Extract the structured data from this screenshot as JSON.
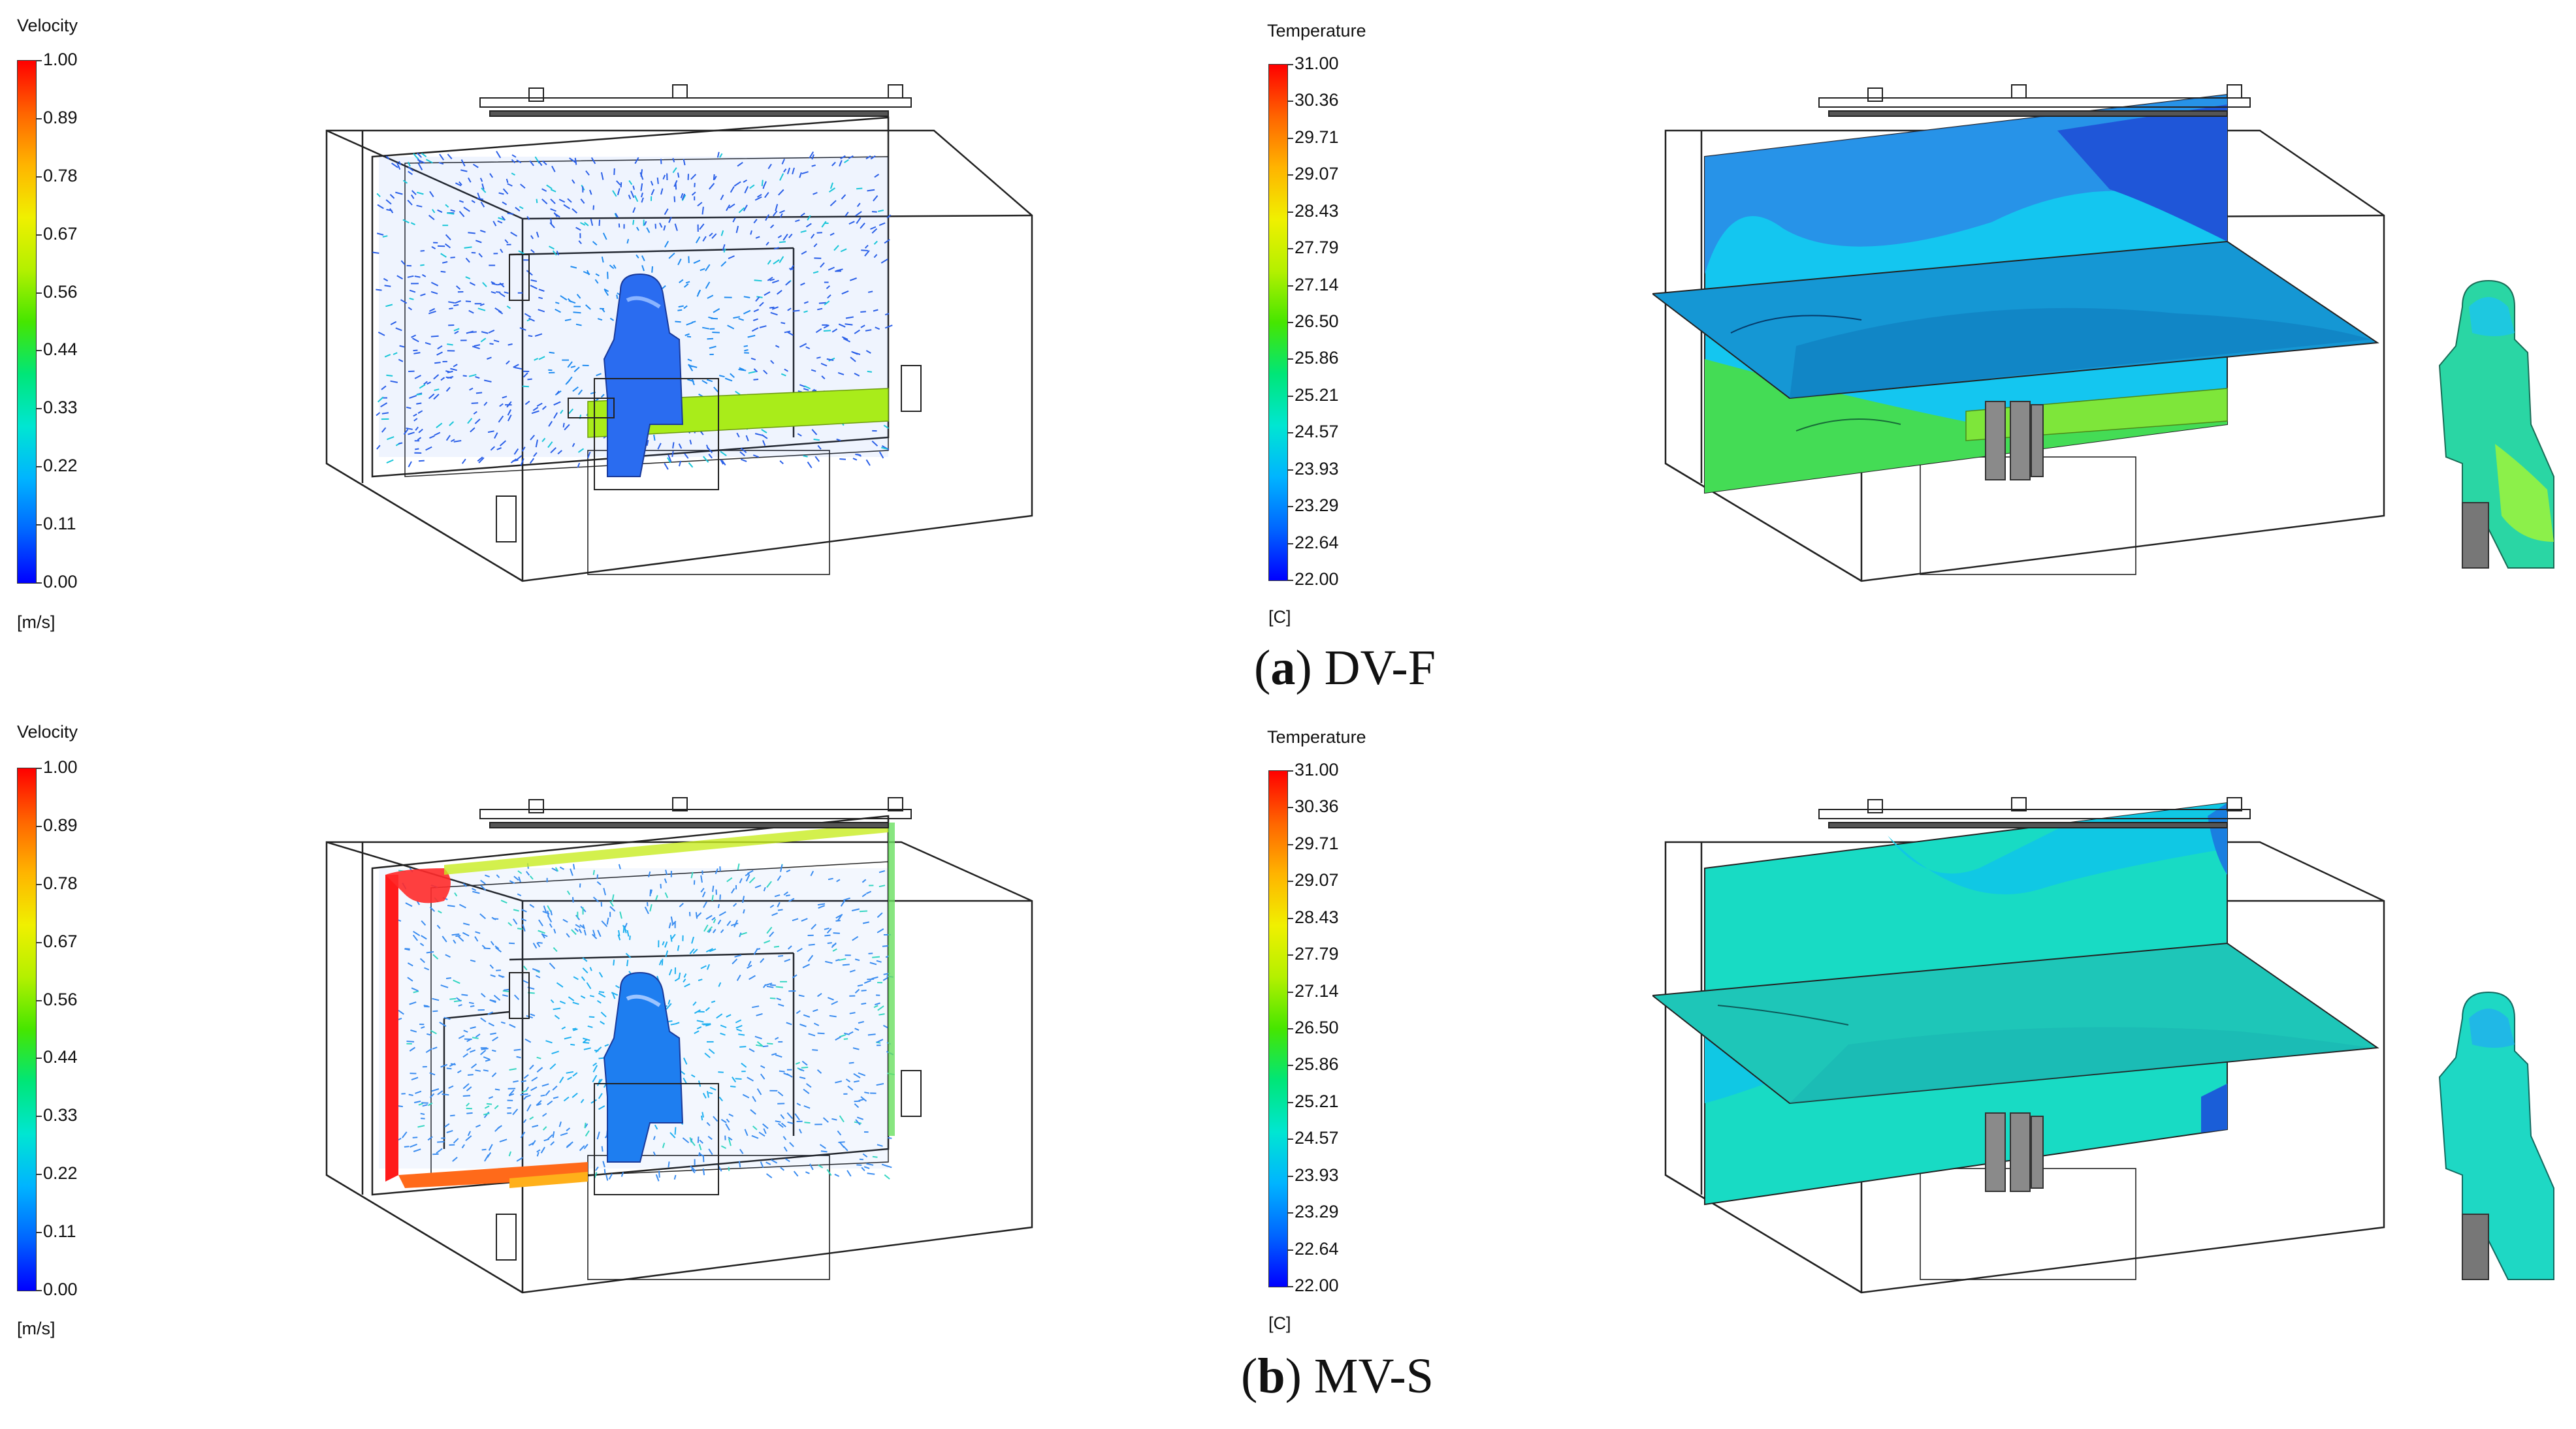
{
  "panels": [
    {
      "id": "a",
      "velocity_legend": {
        "title": "Velocity",
        "ticks": [
          "1.00",
          "0.89",
          "0.78",
          "0.67",
          "0.56",
          "0.44",
          "0.33",
          "0.22",
          "0.11",
          "0.00"
        ],
        "unit": "[m/s]"
      },
      "temperature_legend": {
        "title": "Temperature",
        "ticks": [
          "31.00",
          "30.36",
          "29.71",
          "29.07",
          "28.43",
          "27.79",
          "27.14",
          "26.50",
          "25.86",
          "25.21",
          "24.57",
          "23.93",
          "23.29",
          "22.64",
          "22.00"
        ],
        "unit": "[C]"
      },
      "caption": {
        "letter": "a",
        "paren_open": "(",
        "paren_close": ")",
        "label": " DV-F"
      }
    },
    {
      "id": "b",
      "velocity_legend": {
        "title": "Velocity",
        "ticks": [
          "1.00",
          "0.89",
          "0.78",
          "0.67",
          "0.56",
          "0.44",
          "0.33",
          "0.22",
          "0.11",
          "0.00"
        ],
        "unit": "[m/s]"
      },
      "temperature_legend": {
        "title": "Temperature",
        "ticks": [
          "31.00",
          "30.36",
          "29.71",
          "29.07",
          "28.43",
          "27.79",
          "27.14",
          "26.50",
          "25.86",
          "25.21",
          "24.57",
          "23.93",
          "23.29",
          "22.64",
          "22.00"
        ],
        "unit": "[C]"
      },
      "caption": {
        "letter": "b",
        "paren_open": "(",
        "paren_close": ")",
        "label": " MV-S"
      }
    }
  ],
  "colors": {
    "colormap": [
      "#0000ff",
      "#0066ff",
      "#00b4ff",
      "#00e6d2",
      "#00e678",
      "#46e600",
      "#b4f000",
      "#f0f000",
      "#ffb400",
      "#ff6400",
      "#ff0000"
    ],
    "room_lines": "#222222",
    "human_a": "#2a6cf0",
    "human_b": "#1e7ef0",
    "figure_right": "#28d4d0"
  }
}
